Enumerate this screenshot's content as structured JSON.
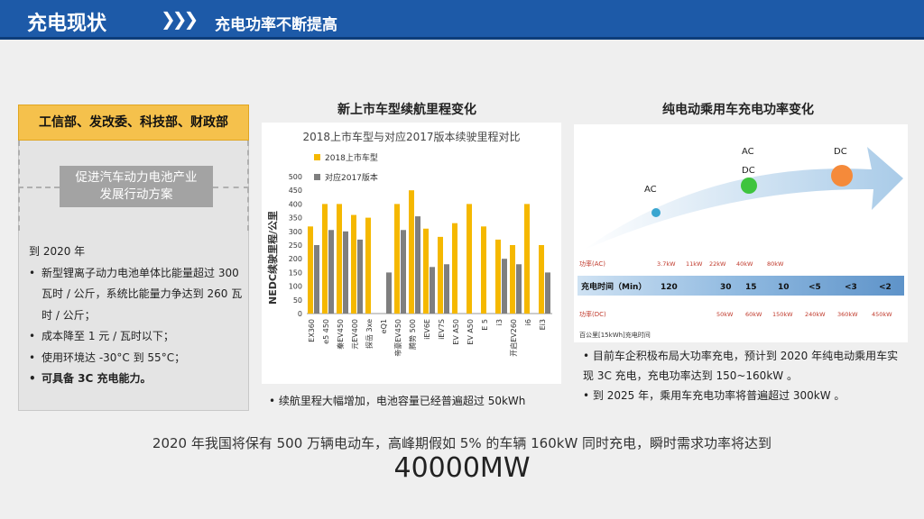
{
  "header": {
    "title": "充电现状",
    "chevrons": "❯❯❯",
    "subtitle": "充电功率不断提高"
  },
  "left": {
    "departments": "工信部、发改委、科技部、财政部",
    "plan_line1": "促进汽车动力电池产业",
    "plan_line2": "发展行动方案",
    "goal_intro": "到 2020 年",
    "goals": [
      "新型锂离子动力电池单体比能量超过 300 瓦时 / 公斤，系统比能量力争达到 260 瓦时 / 公斤；",
      "成本降至 1 元 / 瓦时以下；",
      "使用环境达 -30°C 到 55°C；",
      "可具备 3C 充电能力。"
    ]
  },
  "mid": {
    "section_title": "新上市车型续航里程变化",
    "note": "• 续航里程大幅增加，电池容量已经普遍超过 50kWh"
  },
  "chart_data": {
    "type": "bar",
    "title": "2018上市车型与对应2017版本续驶里程对比",
    "ylabel": "NEDC续驶里程/公里",
    "ylim": [
      0,
      500
    ],
    "yticks": [
      0,
      50,
      100,
      150,
      200,
      250,
      300,
      350,
      400,
      450,
      500
    ],
    "categories": [
      "EX360",
      "e5 450",
      "秦EV450",
      "元EV400",
      "探岳 3xe",
      "eQ1",
      "帝豪EV450",
      "腾势 500",
      "iEV6E",
      "iEV7S",
      "EV A50",
      "EV A50",
      "E 5",
      "i3",
      "开启EV260",
      "i6",
      "Ei3"
    ],
    "series": [
      {
        "name": "2018上市车型",
        "color": "#f5b800",
        "values": [
          318,
          400,
          400,
          360,
          350,
          null,
          400,
          450,
          310,
          280,
          330,
          400,
          318,
          270,
          250,
          400,
          250
        ]
      },
      {
        "name": "对应2017版本",
        "color": "#7f7f7f",
        "values": [
          250,
          305,
          300,
          270,
          null,
          150,
          305,
          355,
          170,
          180,
          null,
          null,
          null,
          200,
          180,
          null,
          150
        ]
      }
    ],
    "legend_position": "top-left"
  },
  "right": {
    "section_title": "纯电动乘用车充电功率变化",
    "labels": {
      "ac1": "AC",
      "ac2": "AC",
      "dc1": "DC",
      "dc2": "DC"
    },
    "power_ac_label": "功率(AC)",
    "power_ac_values": [
      "3.7kW",
      "11kW",
      "22kW",
      "40kW",
      "80kW"
    ],
    "time_label": "充电时间（Min）",
    "time_values": [
      "120",
      "30",
      "15",
      "10",
      "<5",
      "<3",
      "<2"
    ],
    "power_dc_label": "功率(DC)",
    "power_dc_values": [
      "50kW",
      "60kW",
      "150kW",
      "240kW",
      "360kW",
      "450kW"
    ],
    "footnote": "百公里[15kWh]充电时间",
    "notes": [
      "目前车企积极布局大功率充电，预计到 2020 年纯电动乘用车实现 3C 充电，充电功率达到 150~160kW 。",
      "到 2025 年，乘用车充电功率将普遍超过 300kW 。"
    ]
  },
  "bottom": {
    "sentence": "2020 年我国将保有 500 万辆电动车，高峰期假如 5% 的车辆 160kW 同时充电，瞬时需求功率将达到",
    "big_number": "40000MW"
  }
}
